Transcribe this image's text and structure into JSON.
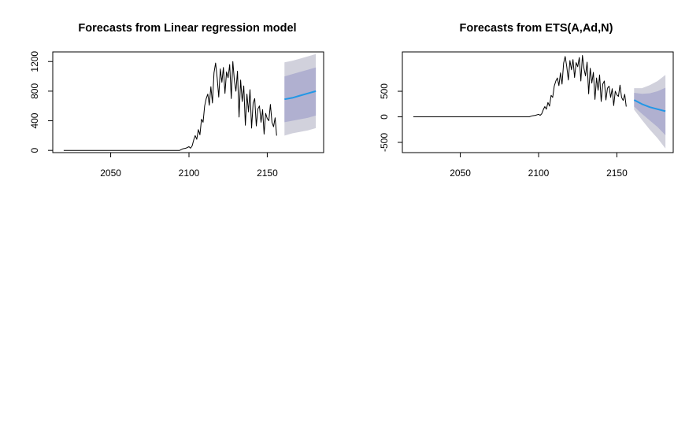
{
  "chart_data": [
    {
      "type": "line",
      "title": "Forecasts from Linear regression model",
      "xlabel": "",
      "ylabel": "",
      "xlim": [
        2013,
        2186
      ],
      "ylim": [
        -30,
        1330
      ],
      "x_ticks": [
        2050,
        2100,
        2150
      ],
      "y_ticks": [
        0,
        400,
        800,
        1200
      ],
      "grid": false,
      "legend": "none",
      "series": [
        {
          "role": "observed",
          "color": "#000000",
          "points": [
            [
              2020,
              0
            ],
            [
              2030,
              0
            ],
            [
              2040,
              0
            ],
            [
              2050,
              0
            ],
            [
              2060,
              0
            ],
            [
              2070,
              0
            ],
            [
              2080,
              0
            ],
            [
              2090,
              0
            ],
            [
              2094,
              0
            ],
            [
              2096,
              20
            ],
            [
              2098,
              30
            ],
            [
              2100,
              50
            ],
            [
              2101,
              30
            ],
            [
              2102,
              60
            ],
            [
              2103,
              140
            ],
            [
              2104,
              200
            ],
            [
              2105,
              150
            ],
            [
              2106,
              280
            ],
            [
              2107,
              210
            ],
            [
              2108,
              420
            ],
            [
              2109,
              380
            ],
            [
              2110,
              600
            ],
            [
              2111,
              700
            ],
            [
              2112,
              760
            ],
            [
              2113,
              610
            ],
            [
              2114,
              860
            ],
            [
              2115,
              640
            ],
            [
              2116,
              1050
            ],
            [
              2117,
              1180
            ],
            [
              2118,
              980
            ],
            [
              2119,
              720
            ],
            [
              2120,
              1100
            ],
            [
              2121,
              920
            ],
            [
              2122,
              1120
            ],
            [
              2123,
              770
            ],
            [
              2124,
              1060
            ],
            [
              2125,
              980
            ],
            [
              2126,
              1160
            ],
            [
              2127,
              700
            ],
            [
              2128,
              1200
            ],
            [
              2129,
              940
            ],
            [
              2130,
              800
            ],
            [
              2131,
              1070
            ],
            [
              2132,
              450
            ],
            [
              2133,
              950
            ],
            [
              2134,
              660
            ],
            [
              2135,
              870
            ],
            [
              2136,
              340
            ],
            [
              2137,
              760
            ],
            [
              2138,
              520
            ],
            [
              2139,
              820
            ],
            [
              2140,
              300
            ],
            [
              2141,
              640
            ],
            [
              2142,
              700
            ],
            [
              2143,
              330
            ],
            [
              2144,
              560
            ],
            [
              2145,
              600
            ],
            [
              2146,
              380
            ],
            [
              2147,
              550
            ],
            [
              2148,
              220
            ],
            [
              2149,
              500
            ],
            [
              2150,
              430
            ],
            [
              2151,
              400
            ],
            [
              2152,
              620
            ],
            [
              2153,
              380
            ],
            [
              2154,
              320
            ],
            [
              2155,
              440
            ],
            [
              2156,
              200
            ]
          ]
        },
        {
          "role": "forecast-mean",
          "color": "#2297e6",
          "points": [
            [
              2161,
              690
            ],
            [
              2166,
              710
            ],
            [
              2171,
              740
            ],
            [
              2176,
              770
            ],
            [
              2181,
              800
            ]
          ]
        }
      ],
      "bands": [
        {
          "level": "95%",
          "color": "#d1d1dc",
          "x": [
            2161,
            2166,
            2171,
            2176,
            2181
          ],
          "lower": [
            200,
            230,
            250,
            270,
            300
          ],
          "upper": [
            1190,
            1210,
            1240,
            1270,
            1300
          ]
        },
        {
          "level": "80%",
          "color": "#b0b0d0",
          "x": [
            2161,
            2166,
            2171,
            2176,
            2181
          ],
          "lower": [
            380,
            400,
            420,
            440,
            470
          ],
          "upper": [
            1000,
            1030,
            1060,
            1090,
            1120
          ]
        }
      ]
    },
    {
      "type": "line",
      "title": "Forecasts from ETS(A,Ad,N)",
      "xlabel": "",
      "ylabel": "",
      "xlim": [
        2013,
        2186
      ],
      "ylim": [
        -700,
        1270
      ],
      "x_ticks": [
        2050,
        2100,
        2150
      ],
      "y_ticks": [
        -500,
        0,
        500
      ],
      "grid": false,
      "legend": "none",
      "series": [
        {
          "role": "observed",
          "color": "#000000",
          "points": [
            [
              2020,
              0
            ],
            [
              2030,
              0
            ],
            [
              2040,
              0
            ],
            [
              2050,
              0
            ],
            [
              2060,
              0
            ],
            [
              2070,
              0
            ],
            [
              2080,
              0
            ],
            [
              2090,
              0
            ],
            [
              2094,
              0
            ],
            [
              2096,
              20
            ],
            [
              2098,
              30
            ],
            [
              2100,
              50
            ],
            [
              2101,
              30
            ],
            [
              2102,
              60
            ],
            [
              2103,
              140
            ],
            [
              2104,
              200
            ],
            [
              2105,
              150
            ],
            [
              2106,
              280
            ],
            [
              2107,
              210
            ],
            [
              2108,
              420
            ],
            [
              2109,
              380
            ],
            [
              2110,
              600
            ],
            [
              2111,
              700
            ],
            [
              2112,
              760
            ],
            [
              2113,
              610
            ],
            [
              2114,
              860
            ],
            [
              2115,
              640
            ],
            [
              2116,
              1050
            ],
            [
              2117,
              1180
            ],
            [
              2118,
              980
            ],
            [
              2119,
              720
            ],
            [
              2120,
              1100
            ],
            [
              2121,
              920
            ],
            [
              2122,
              1120
            ],
            [
              2123,
              770
            ],
            [
              2124,
              1060
            ],
            [
              2125,
              980
            ],
            [
              2126,
              1160
            ],
            [
              2127,
              700
            ],
            [
              2128,
              1200
            ],
            [
              2129,
              940
            ],
            [
              2130,
              800
            ],
            [
              2131,
              1070
            ],
            [
              2132,
              450
            ],
            [
              2133,
              950
            ],
            [
              2134,
              660
            ],
            [
              2135,
              870
            ],
            [
              2136,
              340
            ],
            [
              2137,
              760
            ],
            [
              2138,
              520
            ],
            [
              2139,
              820
            ],
            [
              2140,
              300
            ],
            [
              2141,
              640
            ],
            [
              2142,
              700
            ],
            [
              2143,
              330
            ],
            [
              2144,
              560
            ],
            [
              2145,
              600
            ],
            [
              2146,
              380
            ],
            [
              2147,
              550
            ],
            [
              2148,
              220
            ],
            [
              2149,
              500
            ],
            [
              2150,
              430
            ],
            [
              2151,
              400
            ],
            [
              2152,
              620
            ],
            [
              2153,
              380
            ],
            [
              2154,
              320
            ],
            [
              2155,
              440
            ],
            [
              2156,
              200
            ]
          ]
        },
        {
          "role": "forecast-mean",
          "color": "#2297e6",
          "points": [
            [
              2161,
              330
            ],
            [
              2166,
              250
            ],
            [
              2171,
              190
            ],
            [
              2176,
              150
            ],
            [
              2181,
              110
            ]
          ]
        }
      ],
      "bands": [
        {
          "level": "95%",
          "color": "#d1d1dc",
          "x": [
            2161,
            2166,
            2171,
            2176,
            2181
          ],
          "lower": [
            140,
            -60,
            -250,
            -420,
            -620
          ],
          "upper": [
            560,
            560,
            620,
            700,
            820
          ]
        },
        {
          "level": "80%",
          "color": "#b0b0d0",
          "x": [
            2161,
            2166,
            2171,
            2176,
            2181
          ],
          "lower": [
            200,
            60,
            -70,
            -200,
            -360
          ],
          "upper": [
            470,
            450,
            460,
            500,
            570
          ]
        }
      ]
    }
  ]
}
